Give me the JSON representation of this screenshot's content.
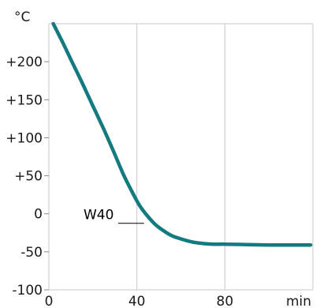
{
  "chart_data": {
    "type": "line",
    "title": "",
    "xlabel": "",
    "ylabel": "",
    "y_unit": "°C",
    "x_unit": "min",
    "xlim": [
      0,
      120
    ],
    "ylim": [
      -100,
      250
    ],
    "x_ticks": [
      {
        "value": 0,
        "label": "0"
      },
      {
        "value": 40,
        "label": "40"
      },
      {
        "value": 80,
        "label": "80"
      }
    ],
    "y_ticks": [
      {
        "value": 200,
        "label": "+200"
      },
      {
        "value": 150,
        "label": "+150"
      },
      {
        "value": 100,
        "label": "+100"
      },
      {
        "value": 50,
        "label": "+50"
      },
      {
        "value": 0,
        "label": "0"
      },
      {
        "value": -50,
        "label": "-50"
      },
      {
        "value": -100,
        "label": "-100"
      }
    ],
    "grid": true,
    "line_color": "#137a7f",
    "series": [
      {
        "name": "",
        "x": [
          2,
          6,
          10,
          15,
          20,
          25,
          30,
          34,
          38,
          41,
          44,
          48,
          52,
          56,
          60,
          65,
          70,
          75,
          80,
          90,
          100,
          110,
          119
        ],
        "y": [
          250,
          227,
          203,
          173,
          142,
          111,
          78,
          51,
          28,
          12,
          0,
          -13,
          -22,
          -29,
          -33,
          -37,
          -39,
          -40,
          -40,
          -40.5,
          -41,
          -41,
          -41
        ]
      }
    ],
    "annotations": [
      {
        "text": "W40",
        "x": 44,
        "y": 0
      }
    ]
  }
}
